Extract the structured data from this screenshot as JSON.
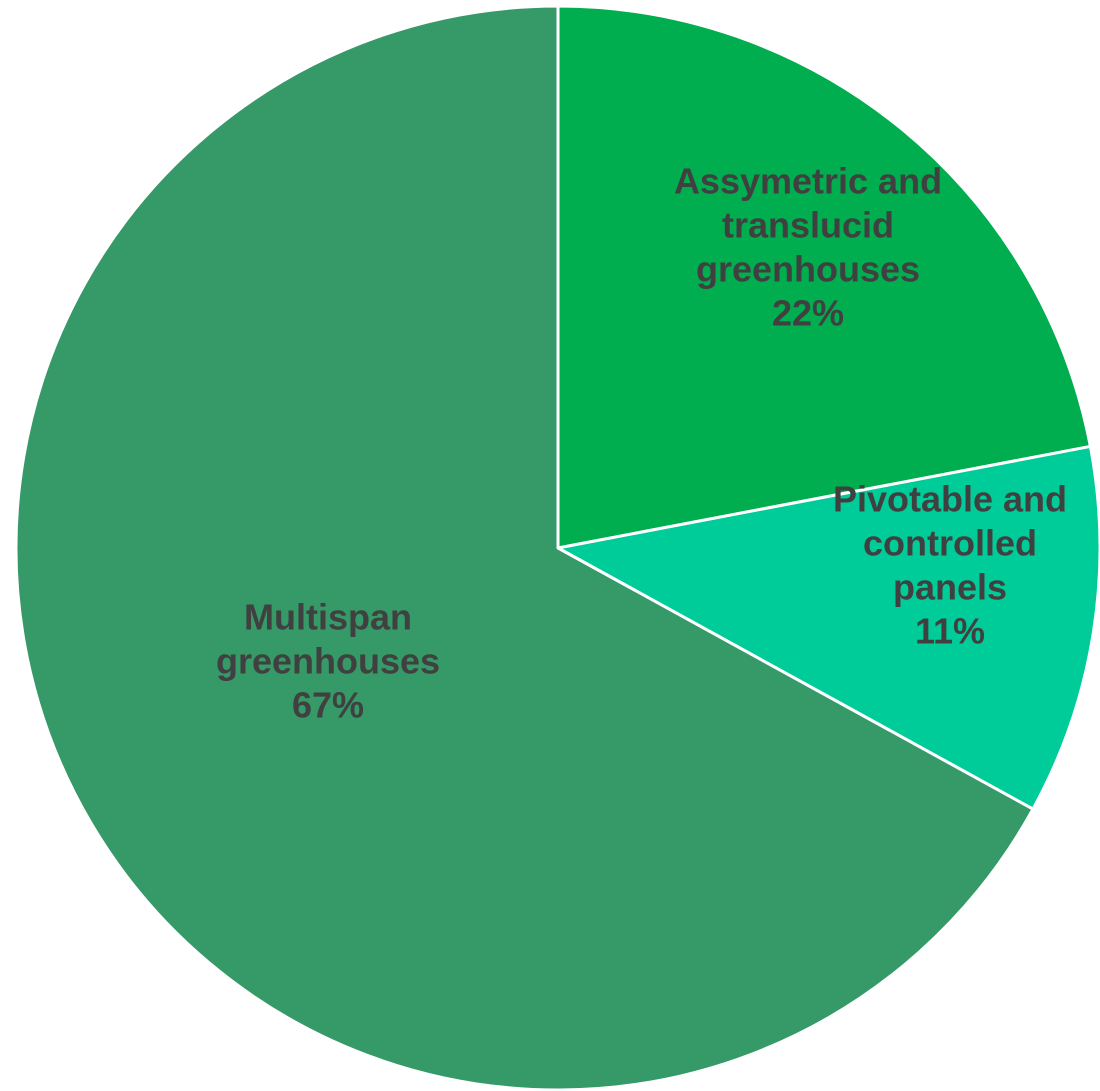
{
  "chart_data": {
    "type": "pie",
    "title": "",
    "start_angle_deg": 0,
    "direction": "clockwise",
    "slice_border_color": "#ffffff",
    "slices": [
      {
        "label_lines": [
          "Assymetric and",
          "translucid",
          "greenhouses"
        ],
        "value": 22,
        "percent_label": "22%",
        "color": "#00ad4f"
      },
      {
        "label_lines": [
          "Pivotable and",
          "controlled",
          "panels"
        ],
        "value": 11,
        "percent_label": "11%",
        "color": "#00cc99"
      },
      {
        "label_lines": [
          "Multispan",
          "greenhouses"
        ],
        "value": 67,
        "percent_label": "67%",
        "color": "#359968"
      }
    ]
  }
}
